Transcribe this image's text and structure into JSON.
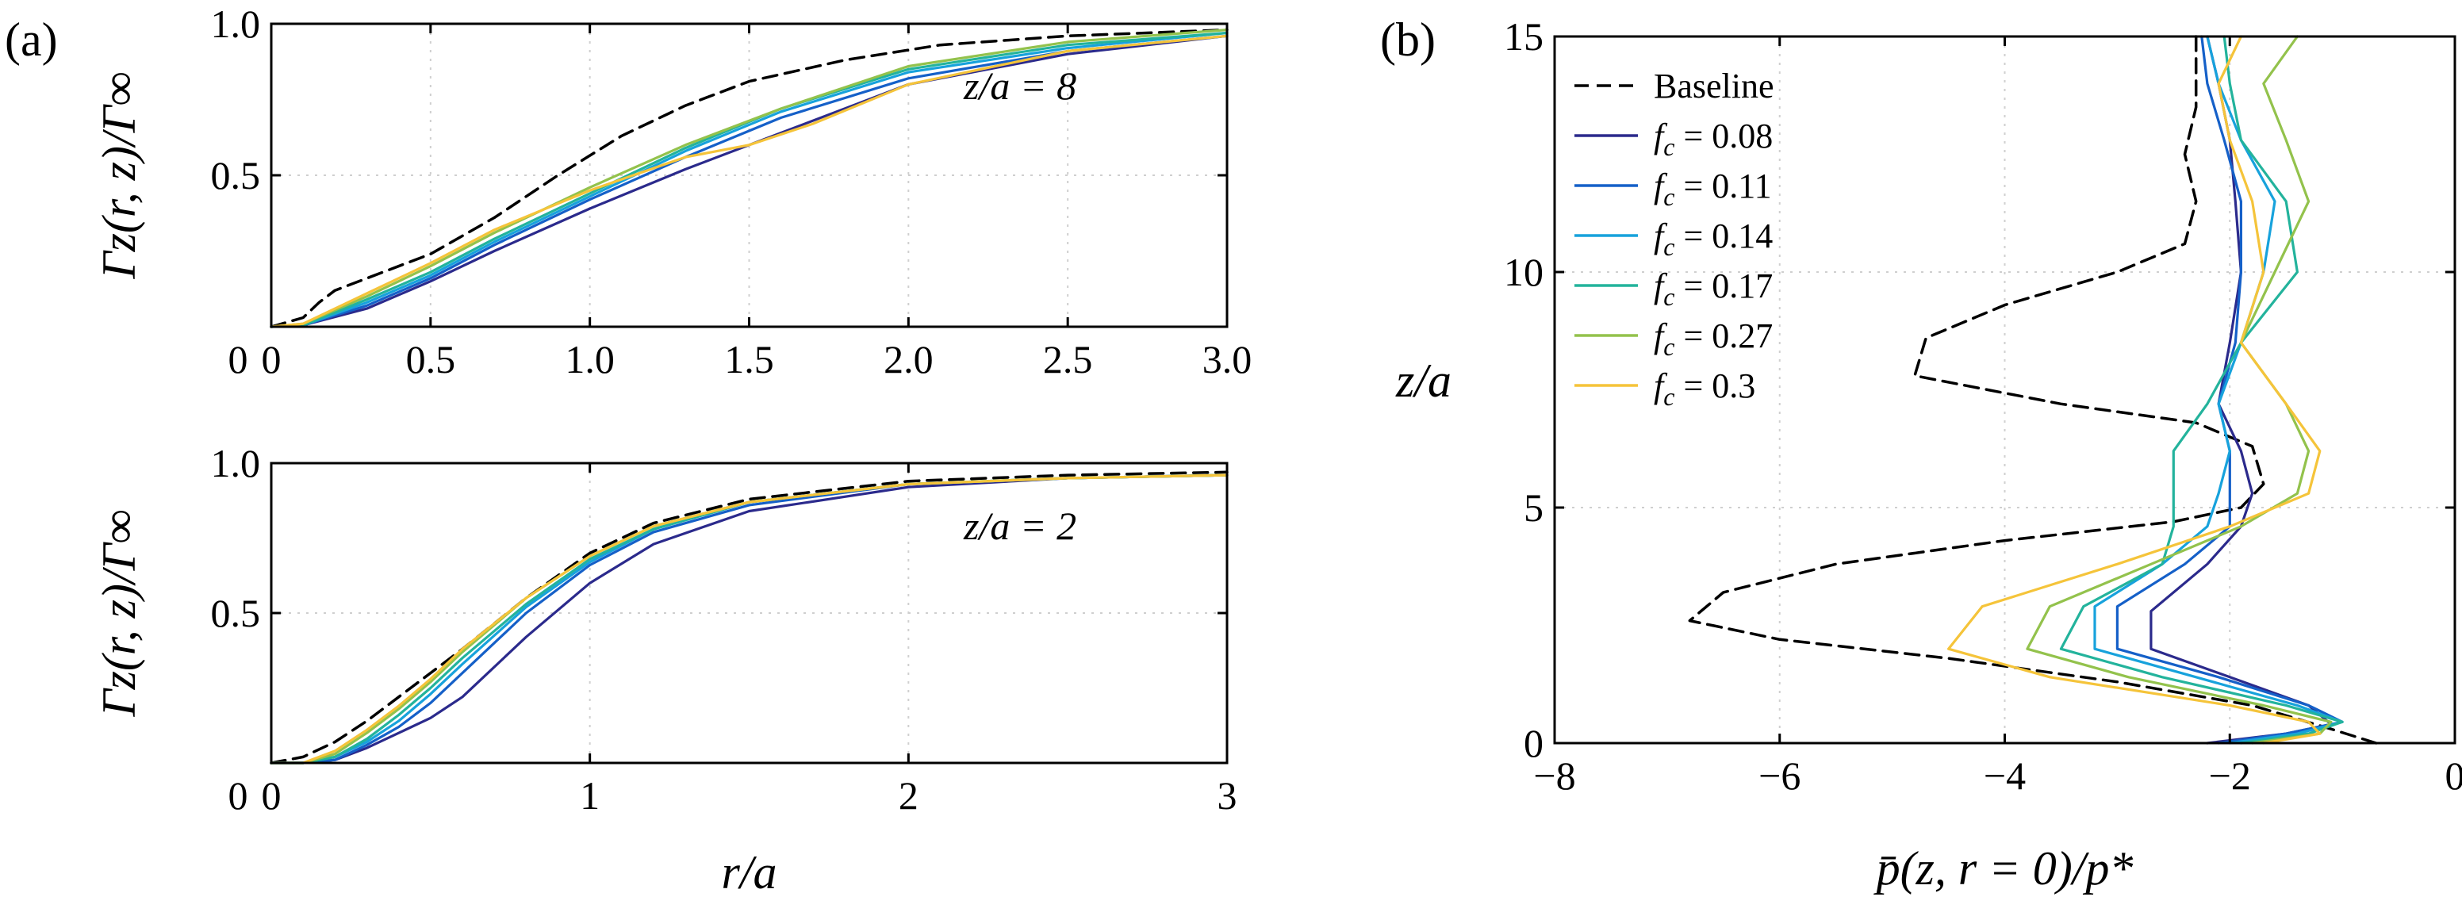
{
  "colors": {
    "Baseline": "#000000",
    "fc008": "#2b2a8c",
    "fc011": "#1560c8",
    "fc014": "#17a2dc",
    "fc017": "#23b39c",
    "fc027": "#93c24c",
    "fc030": "#f5c43a"
  },
  "panel_labels": {
    "a": "(a)",
    "b": "(b)"
  },
  "chart_data": [
    {
      "id": "a_top",
      "type": "line",
      "title": "",
      "annotation": "z/a = 8",
      "xlabel": "",
      "ylabel": "Γz(r, z)/Γ∞",
      "xlim": [
        0,
        3.0
      ],
      "ylim": [
        0,
        1.0
      ],
      "xticks": [
        "0",
        "0.5",
        "1.0",
        "1.5",
        "2.0",
        "2.5",
        "3.0"
      ],
      "xtick_values": [
        0,
        0.5,
        1.0,
        1.5,
        2.0,
        2.5,
        3.0
      ],
      "yticks": [
        "0.5",
        "1.0"
      ],
      "ytick_values": [
        0.5,
        1.0
      ],
      "grid": true,
      "series": [
        {
          "name": "Baseline",
          "key": "Baseline",
          "dash": true,
          "x": [
            0,
            0.1,
            0.15,
            0.2,
            0.3,
            0.5,
            0.7,
            0.9,
            1.1,
            1.3,
            1.5,
            1.8,
            2.1,
            2.5,
            3.0
          ],
          "y": [
            0,
            0.03,
            0.08,
            0.12,
            0.16,
            0.24,
            0.36,
            0.5,
            0.63,
            0.73,
            0.81,
            0.88,
            0.93,
            0.96,
            0.98
          ]
        },
        {
          "name": "f_c = 0.08",
          "key": "fc008",
          "dash": false,
          "x": [
            0,
            0.1,
            0.3,
            0.5,
            0.7,
            1.0,
            1.3,
            1.6,
            2.0,
            2.5,
            3.0
          ],
          "y": [
            0,
            0.005,
            0.06,
            0.15,
            0.25,
            0.39,
            0.52,
            0.64,
            0.8,
            0.9,
            0.96
          ]
        },
        {
          "name": "f_c = 0.11",
          "key": "fc011",
          "dash": false,
          "x": [
            0,
            0.1,
            0.3,
            0.5,
            0.7,
            1.0,
            1.3,
            1.6,
            2.0,
            2.5,
            3.0
          ],
          "y": [
            0,
            0.005,
            0.07,
            0.16,
            0.27,
            0.42,
            0.56,
            0.69,
            0.82,
            0.91,
            0.96
          ]
        },
        {
          "name": "f_c = 0.14",
          "key": "fc014",
          "dash": false,
          "x": [
            0,
            0.1,
            0.3,
            0.5,
            0.7,
            1.0,
            1.3,
            1.6,
            2.0,
            2.5,
            3.0
          ],
          "y": [
            0,
            0.005,
            0.08,
            0.17,
            0.28,
            0.43,
            0.58,
            0.71,
            0.84,
            0.92,
            0.97
          ]
        },
        {
          "name": "f_c = 0.17",
          "key": "fc017",
          "dash": false,
          "x": [
            0,
            0.1,
            0.3,
            0.5,
            0.7,
            1.0,
            1.3,
            1.6,
            2.0,
            2.5,
            3.0
          ],
          "y": [
            0,
            0.005,
            0.09,
            0.18,
            0.29,
            0.44,
            0.59,
            0.72,
            0.85,
            0.93,
            0.97
          ]
        },
        {
          "name": "f_c = 0.27",
          "key": "fc027",
          "dash": false,
          "x": [
            0,
            0.1,
            0.3,
            0.5,
            0.7,
            1.0,
            1.3,
            1.6,
            2.0,
            2.5,
            3.0
          ],
          "y": [
            0,
            0.01,
            0.1,
            0.2,
            0.31,
            0.46,
            0.6,
            0.72,
            0.86,
            0.94,
            0.98
          ]
        },
        {
          "name": "f_c = 0.3",
          "key": "fc030",
          "dash": false,
          "x": [
            0,
            0.1,
            0.3,
            0.5,
            0.7,
            1.0,
            1.3,
            1.5,
            1.7,
            2.0,
            2.5,
            3.0
          ],
          "y": [
            0,
            0.01,
            0.11,
            0.21,
            0.32,
            0.45,
            0.56,
            0.6,
            0.67,
            0.8,
            0.91,
            0.96
          ]
        }
      ]
    },
    {
      "id": "a_bottom",
      "type": "line",
      "title": "",
      "annotation": "z/a = 2",
      "xlabel": "r/a",
      "ylabel": "Γz(r, z)/Γ∞",
      "xlim": [
        0,
        3
      ],
      "ylim": [
        0,
        1.0
      ],
      "xticks": [
        "0",
        "1",
        "2",
        "3"
      ],
      "xtick_values": [
        0,
        1,
        2,
        3
      ],
      "yticks": [
        "0.5",
        "1.0"
      ],
      "ytick_values": [
        0.5,
        1.0
      ],
      "grid": true,
      "series": [
        {
          "name": "Baseline",
          "key": "Baseline",
          "dash": true,
          "x": [
            0,
            0.1,
            0.2,
            0.3,
            0.4,
            0.5,
            0.6,
            0.8,
            1.0,
            1.2,
            1.5,
            2.0,
            2.5,
            3.0
          ],
          "y": [
            0,
            0.02,
            0.07,
            0.14,
            0.22,
            0.3,
            0.38,
            0.55,
            0.7,
            0.8,
            0.88,
            0.94,
            0.96,
            0.97
          ]
        },
        {
          "name": "f_c = 0.08",
          "key": "fc008",
          "dash": false,
          "x": [
            0,
            0.1,
            0.2,
            0.3,
            0.4,
            0.5,
            0.6,
            0.8,
            1.0,
            1.2,
            1.5,
            2.0,
            2.5,
            3.0
          ],
          "y": [
            0,
            0.0,
            0.01,
            0.05,
            0.1,
            0.15,
            0.22,
            0.42,
            0.6,
            0.73,
            0.84,
            0.92,
            0.95,
            0.96
          ]
        },
        {
          "name": "f_c = 0.11",
          "key": "fc011",
          "dash": false,
          "x": [
            0,
            0.1,
            0.2,
            0.3,
            0.4,
            0.5,
            0.6,
            0.8,
            1.0,
            1.2,
            1.5,
            2.0,
            2.5,
            3.0
          ],
          "y": [
            0,
            0.0,
            0.01,
            0.06,
            0.12,
            0.2,
            0.3,
            0.5,
            0.66,
            0.77,
            0.86,
            0.93,
            0.95,
            0.96
          ]
        },
        {
          "name": "f_c = 0.14",
          "key": "fc014",
          "dash": false,
          "x": [
            0,
            0.1,
            0.2,
            0.3,
            0.4,
            0.5,
            0.6,
            0.8,
            1.0,
            1.2,
            1.5,
            2.0,
            2.5,
            3.0
          ],
          "y": [
            0,
            0.0,
            0.02,
            0.07,
            0.14,
            0.23,
            0.33,
            0.52,
            0.67,
            0.78,
            0.87,
            0.93,
            0.95,
            0.96
          ]
        },
        {
          "name": "f_c = 0.17",
          "key": "fc017",
          "dash": false,
          "x": [
            0,
            0.1,
            0.2,
            0.3,
            0.4,
            0.5,
            0.6,
            0.8,
            1.0,
            1.2,
            1.5,
            2.0,
            2.5,
            3.0
          ],
          "y": [
            0,
            0.0,
            0.02,
            0.08,
            0.16,
            0.25,
            0.35,
            0.53,
            0.68,
            0.78,
            0.87,
            0.93,
            0.95,
            0.96
          ]
        },
        {
          "name": "f_c = 0.27",
          "key": "fc027",
          "dash": false,
          "x": [
            0,
            0.1,
            0.2,
            0.3,
            0.4,
            0.5,
            0.6,
            0.8,
            1.0,
            1.2,
            1.5,
            2.0,
            2.5,
            3.0
          ],
          "y": [
            0,
            0.0,
            0.03,
            0.1,
            0.18,
            0.27,
            0.37,
            0.55,
            0.69,
            0.79,
            0.87,
            0.93,
            0.95,
            0.96
          ]
        },
        {
          "name": "f_c = 0.3",
          "key": "fc030",
          "dash": false,
          "x": [
            0,
            0.1,
            0.2,
            0.3,
            0.4,
            0.5,
            0.6,
            0.8,
            1.0,
            1.2,
            1.5,
            2.0,
            2.5,
            3.0
          ],
          "y": [
            0,
            0.0,
            0.04,
            0.11,
            0.19,
            0.28,
            0.38,
            0.55,
            0.69,
            0.79,
            0.87,
            0.93,
            0.95,
            0.96
          ]
        }
      ]
    },
    {
      "id": "b",
      "type": "line",
      "title": "",
      "xlabel": "p̄(z, r = 0)/p*",
      "ylabel": "z/a",
      "xlim": [
        -8,
        0
      ],
      "ylim": [
        0,
        15
      ],
      "xticks": [
        "−8",
        "−6",
        "−4",
        "−2",
        "0"
      ],
      "xtick_values": [
        -8,
        -6,
        -4,
        -2,
        0
      ],
      "yticks": [
        "0",
        "5",
        "10",
        "15"
      ],
      "ytick_values": [
        0,
        5,
        10,
        15
      ],
      "grid": true,
      "legend": "top-left",
      "series": [
        {
          "name": "Baseline",
          "label": "Baseline",
          "key": "Baseline",
          "dash": true,
          "x": [
            -0.7,
            -1.1,
            -1.8,
            -3.0,
            -4.5,
            -6.0,
            -6.8,
            -6.5,
            -5.5,
            -4.0,
            -2.5,
            -1.9,
            -1.7,
            -1.8,
            -2.3,
            -3.5,
            -4.8,
            -4.7,
            -4.0,
            -3.0,
            -2.4,
            -2.3,
            -2.4,
            -2.3,
            -2.3
          ],
          "y": [
            0,
            0.3,
            0.8,
            1.3,
            1.8,
            2.2,
            2.6,
            3.2,
            3.8,
            4.3,
            4.7,
            5.0,
            5.5,
            6.3,
            6.8,
            7.2,
            7.8,
            8.6,
            9.3,
            10.0,
            10.6,
            11.5,
            12.5,
            13.5,
            15
          ]
        },
        {
          "name": "f_c = 0.08",
          "label": "f",
          "sub": "c",
          "value": " = 0.08",
          "key": "fc008",
          "dash": false,
          "x": [
            -2.2,
            -1.5,
            -1.1,
            -1.3,
            -2.0,
            -2.7,
            -2.7,
            -2.2,
            -1.9,
            -1.8,
            -1.9,
            -2.1,
            -2.0,
            -1.9,
            -1.95,
            -2.0,
            -2.1,
            -2.2
          ],
          "y": [
            0,
            0.2,
            0.4,
            0.8,
            1.4,
            2.0,
            2.8,
            3.8,
            4.6,
            5.3,
            6.2,
            7.2,
            8.5,
            10.0,
            11.5,
            12.8,
            14.0,
            15
          ]
        },
        {
          "name": "f_c = 0.11",
          "label": "f",
          "sub": "c",
          "value": " = 0.11",
          "key": "fc011",
          "dash": false,
          "x": [
            -2.1,
            -1.5,
            -1.0,
            -1.3,
            -2.1,
            -3.0,
            -3.0,
            -2.4,
            -2.0,
            -2.0,
            -2.0,
            -2.1,
            -1.95,
            -1.9,
            -1.9,
            -2.05,
            -2.2,
            -2.25
          ],
          "y": [
            0,
            0.2,
            0.45,
            0.8,
            1.4,
            2.0,
            2.9,
            3.8,
            4.6,
            5.3,
            6.2,
            7.2,
            8.5,
            10.0,
            11.5,
            12.8,
            14.0,
            15
          ]
        },
        {
          "name": "f_c = 0.14",
          "label": "f",
          "sub": "c",
          "value": " = 0.14",
          "key": "fc014",
          "dash": false,
          "x": [
            -2.0,
            -1.4,
            -1.0,
            -1.4,
            -2.3,
            -3.2,
            -3.2,
            -2.6,
            -2.2,
            -2.1,
            -2.0,
            -2.1,
            -1.9,
            -1.7,
            -1.6,
            -1.9,
            -2.1,
            -2.2
          ],
          "y": [
            0,
            0.2,
            0.45,
            0.8,
            1.4,
            2.0,
            2.9,
            3.8,
            4.6,
            5.3,
            6.2,
            7.2,
            8.5,
            10.0,
            11.5,
            12.8,
            14.0,
            15
          ]
        },
        {
          "name": "f_c = 0.17",
          "label": "f",
          "sub": "c",
          "value": " = 0.17",
          "key": "fc017",
          "dash": false,
          "x": [
            -1.9,
            -1.3,
            -1.0,
            -1.5,
            -2.6,
            -3.5,
            -3.3,
            -2.6,
            -2.5,
            -2.5,
            -2.5,
            -2.2,
            -1.9,
            -1.4,
            -1.5,
            -1.9,
            -2.0,
            -2.05
          ],
          "y": [
            0,
            0.2,
            0.45,
            0.8,
            1.4,
            2.0,
            2.9,
            3.8,
            4.6,
            5.3,
            6.2,
            7.2,
            8.5,
            10.0,
            11.5,
            12.8,
            14.0,
            15
          ]
        },
        {
          "name": "f_c = 0.27",
          "label": "f",
          "sub": "c",
          "value": " = 0.27",
          "key": "fc027",
          "dash": false,
          "x": [
            -1.8,
            -1.2,
            -1.1,
            -1.7,
            -2.9,
            -3.8,
            -3.6,
            -2.7,
            -1.9,
            -1.4,
            -1.3,
            -1.5,
            -1.9,
            -1.6,
            -1.3,
            -1.5,
            -1.7,
            -1.4
          ],
          "y": [
            0,
            0.2,
            0.45,
            0.8,
            1.4,
            2.0,
            2.9,
            3.8,
            4.6,
            5.3,
            6.2,
            7.2,
            8.5,
            10.0,
            11.5,
            12.8,
            14.0,
            15
          ]
        },
        {
          "name": "f_c = 0.3",
          "label": "f",
          "sub": "c",
          "value": " = 0.3",
          "key": "fc030",
          "dash": false,
          "x": [
            -1.7,
            -1.2,
            -1.3,
            -2.0,
            -3.6,
            -4.5,
            -4.2,
            -3.0,
            -2.0,
            -1.3,
            -1.2,
            -1.5,
            -1.9,
            -1.7,
            -1.8,
            -2.0,
            -2.1,
            -1.9
          ],
          "y": [
            0,
            0.2,
            0.45,
            0.8,
            1.4,
            2.0,
            2.9,
            3.8,
            4.6,
            5.3,
            6.2,
            7.2,
            8.5,
            10.0,
            11.5,
            12.8,
            14.0,
            15
          ]
        }
      ]
    }
  ]
}
